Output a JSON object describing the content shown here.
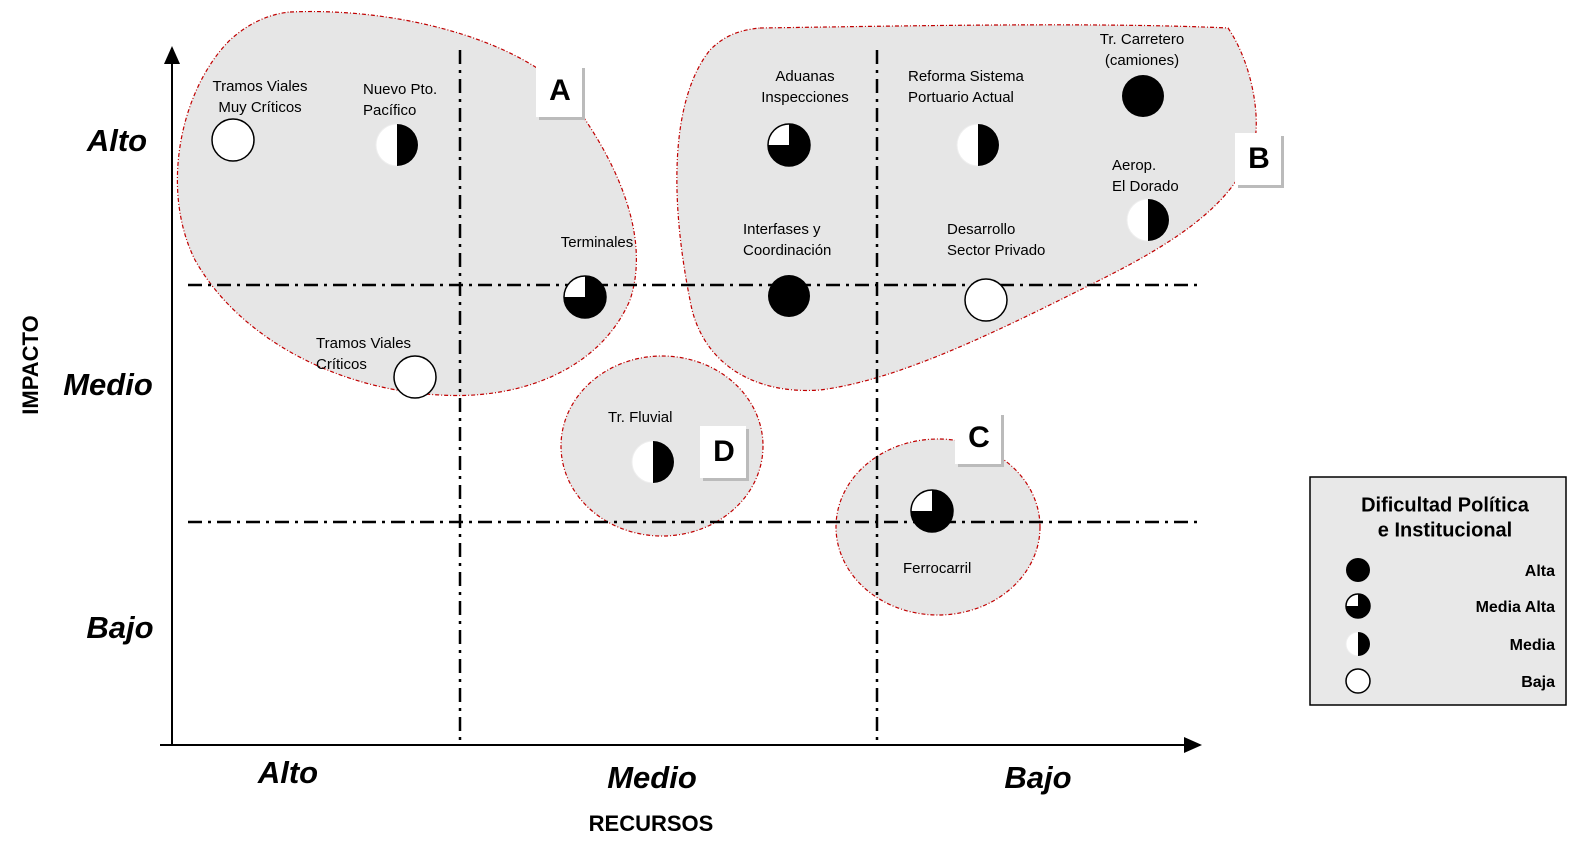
{
  "y_axis": {
    "label": "IMPACTO",
    "levels": [
      "Alto",
      "Medio",
      "Bajo"
    ]
  },
  "x_axis": {
    "label": "RECURSOS",
    "levels": [
      "Alto",
      "Medio",
      "Bajo"
    ]
  },
  "zones": [
    "A",
    "B",
    "C",
    "D"
  ],
  "nodes": [
    {
      "label": [
        "Tramos Viales",
        "Muy Críticos"
      ]
    },
    {
      "label": [
        "Nuevo Pto.",
        "Pacífico"
      ]
    },
    {
      "label": [
        "Terminales"
      ]
    },
    {
      "label": [
        "Tramos Viales",
        "Críticos"
      ]
    },
    {
      "label": [
        "Aduanas",
        "Inspecciones"
      ]
    },
    {
      "label": [
        "Reforma Sistema",
        "Portuario Actual"
      ]
    },
    {
      "label": [
        "Tr. Carretero",
        "(camiones)"
      ]
    },
    {
      "label": [
        "Aerop.",
        "El Dorado"
      ]
    },
    {
      "label": [
        "Interfases y",
        "Coordinación"
      ]
    },
    {
      "label": [
        "Desarrollo",
        "Sector Privado"
      ]
    },
    {
      "label": [
        "Tr. Fluvial"
      ]
    },
    {
      "label": [
        "Ferrocarril"
      ]
    }
  ],
  "legend": {
    "title": [
      "Dificultad Política",
      "e Institucional"
    ],
    "items": [
      "Alta",
      "Media Alta",
      "Media",
      "Baja"
    ]
  }
}
